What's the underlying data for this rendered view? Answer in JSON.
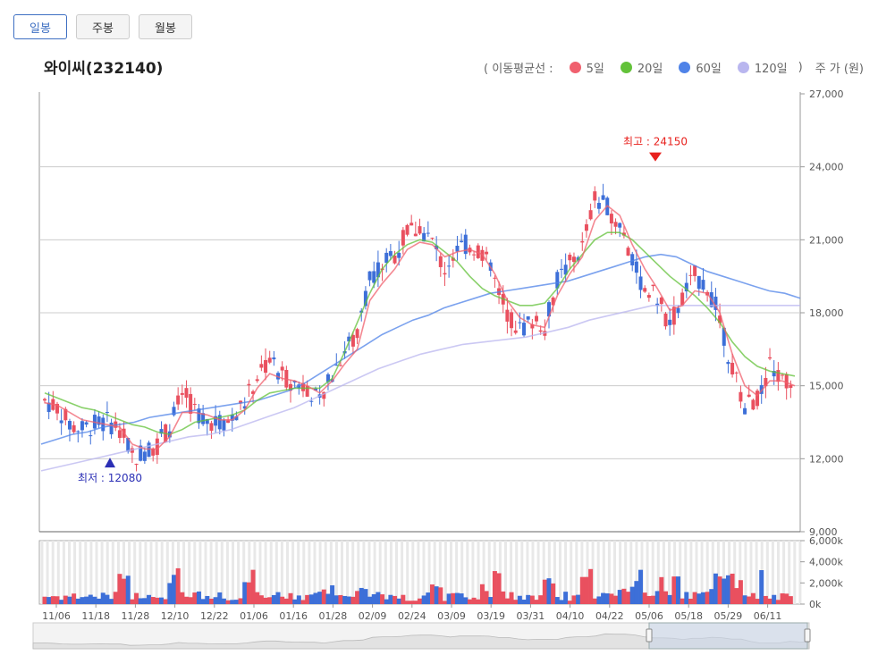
{
  "tabs": {
    "daily": "일봉",
    "weekly": "주봉",
    "monthly": "월봉"
  },
  "stock_title": "와이씨(232140)",
  "legend": {
    "prefix": "( 이동평균선 :",
    "suffix": ")",
    "unit": "주 가 (원)",
    "ma": [
      {
        "label": "5일",
        "color": "#f0606e"
      },
      {
        "label": "20일",
        "color": "#63c23a"
      },
      {
        "label": "60일",
        "color": "#4f83e8"
      },
      {
        "label": "120일",
        "color": "#b9b6ef"
      }
    ]
  },
  "annotations": {
    "high": "최고 : 24150",
    "low": "최저 : 12080"
  },
  "colors": {
    "up": "#e9505f",
    "down": "#3d6fd8"
  },
  "chart_data": {
    "type": "candlestick",
    "price_axis": {
      "ylim": [
        9000,
        27000
      ],
      "ticks": [
        "27,000",
        "24,000",
        "21,000",
        "18,000",
        "15,000",
        "12,000",
        "9,000"
      ]
    },
    "volume_axis": {
      "ylim": [
        0,
        6000
      ],
      "ticks": [
        "6,000k",
        "4,000k",
        "2,000k",
        "0k"
      ]
    },
    "x_tick_labels": [
      "11/06",
      "11/18",
      "11/28",
      "12/10",
      "12/22",
      "01/06",
      "01/16",
      "01/28",
      "02/09",
      "02/24",
      "03/09",
      "03/19",
      "03/31",
      "04/10",
      "04/22",
      "05/06",
      "05/18",
      "05/29",
      "06/11"
    ],
    "high": 24150,
    "low": 12080,
    "close_path": [
      14400,
      14100,
      13400,
      13200,
      13400,
      13500,
      13300,
      12100,
      12300,
      12600,
      13300,
      14700,
      14000,
      13600,
      13500,
      13600,
      14300,
      15400,
      16100,
      15400,
      15100,
      15000,
      14200,
      15500,
      16500,
      17000,
      19500,
      20000,
      20400,
      21300,
      21500,
      20900,
      19800,
      20700,
      20800,
      20500,
      19300,
      18000,
      17300,
      17700,
      17500,
      19300,
      20000,
      20700,
      22700,
      22300,
      21700,
      20000,
      19000,
      18600,
      17500,
      18600,
      19500,
      19100,
      17800,
      15600,
      14200,
      14400,
      15800,
      15200,
      14900
    ],
    "ma5": [
      14300,
      14200,
      13900,
      13600,
      13500,
      13400,
      13300,
      12600,
      12400,
      12400,
      12900,
      13900,
      13900,
      13800,
      13600,
      13600,
      14000,
      14900,
      15500,
      15300,
      15200,
      15000,
      14700,
      15200,
      15900,
      16500,
      18500,
      19200,
      19800,
      20600,
      20900,
      20800,
      20300,
      20500,
      20600,
      20400,
      19600,
      18500,
      17800,
      17500,
      17400,
      18700,
      19600,
      20300,
      21800,
      22400,
      22000,
      20800,
      19800,
      19000,
      18100,
      18300,
      18900,
      18800,
      18000,
      16300,
      15000,
      14600,
      15200,
      15200,
      15000
    ],
    "ma20": [
      14700,
      14500,
      14300,
      14100,
      14000,
      13800,
      13600,
      13400,
      13300,
      13100,
      13000,
      13200,
      13500,
      13600,
      13700,
      13800,
      14000,
      14400,
      14700,
      14800,
      14900,
      14900,
      14900,
      15300,
      16400,
      17600,
      18800,
      19800,
      20400,
      20800,
      21000,
      20900,
      20500,
      20100,
      19500,
      19000,
      18700,
      18500,
      18300,
      18300,
      18400,
      19000,
      19800,
      20400,
      21000,
      21300,
      21300,
      21000,
      20500,
      20000,
      19500,
      19100,
      18700,
      18200,
      17600,
      16800,
      16200,
      15800,
      15600,
      15500,
      15400
    ],
    "ma60": [
      12600,
      12800,
      13000,
      13100,
      13300,
      13400,
      13500,
      13700,
      13800,
      13900,
      14000,
      14100,
      14200,
      14300,
      14400,
      14600,
      14800,
      15100,
      15500,
      15900,
      16300,
      16700,
      17100,
      17400,
      17700,
      17900,
      18200,
      18400,
      18600,
      18800,
      18900,
      19000,
      19100,
      19200,
      19300,
      19500,
      19700,
      19900,
      20100,
      20300,
      20400,
      20300,
      20000,
      19700,
      19500,
      19300,
      19100,
      18900,
      18800,
      18600
    ],
    "ma120": [
      11500,
      11700,
      11900,
      12100,
      12300,
      12500,
      12700,
      12900,
      13000,
      13200,
      13500,
      13800,
      14100,
      14500,
      14900,
      15300,
      15700,
      16000,
      16300,
      16500,
      16700,
      16800,
      16900,
      17000,
      17200,
      17400,
      17700,
      17900,
      18100,
      18300,
      18300,
      18300,
      18300,
      18300,
      18300,
      18300,
      18300
    ]
  }
}
